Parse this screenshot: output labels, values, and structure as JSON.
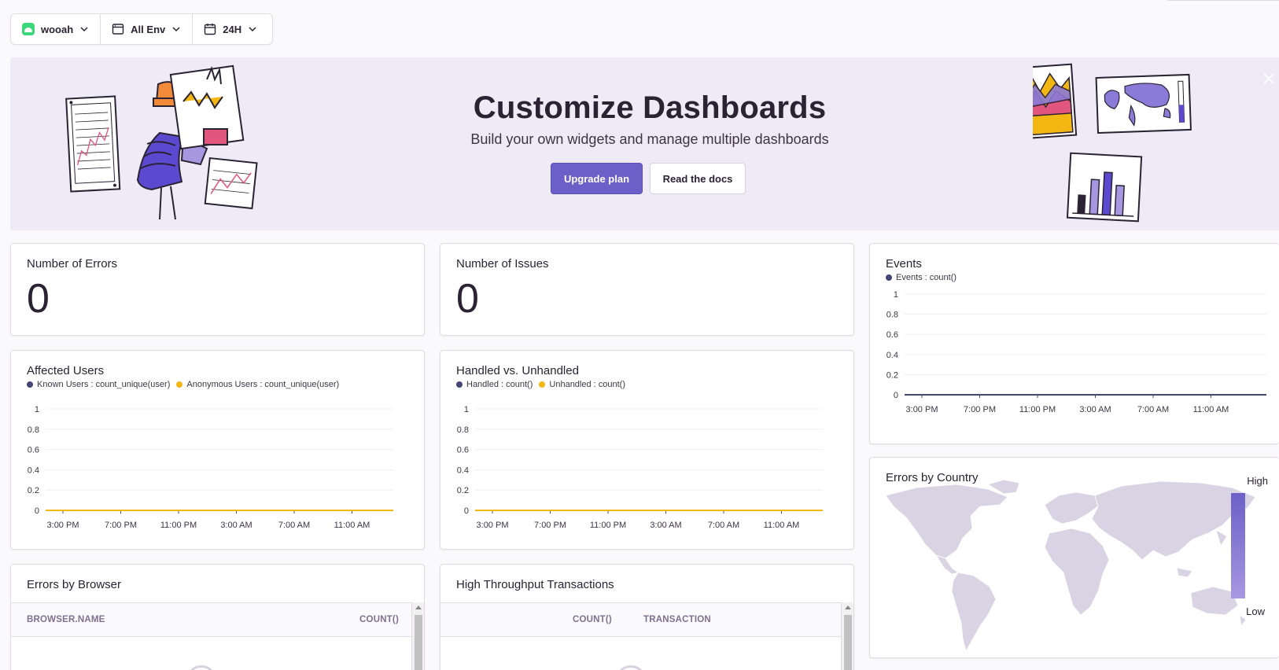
{
  "filters": {
    "project": "wooah",
    "environment": "All Env",
    "period": "24H"
  },
  "banner": {
    "title": "Customize Dashboards",
    "subtitle": "Build your own widgets and manage multiple dashboards",
    "primary_button": "Upgrade plan",
    "secondary_button": "Read the docs"
  },
  "widgets": {
    "errors": {
      "title": "Number of Errors",
      "value": "0"
    },
    "issues": {
      "title": "Number of Issues",
      "value": "0"
    },
    "events": {
      "title": "Events",
      "legend": [
        "Events : count()"
      ]
    },
    "affected_users": {
      "title": "Affected Users",
      "legend": [
        "Known Users : count_unique(user)",
        "Anonymous Users : count_unique(user)"
      ]
    },
    "handled": {
      "title": "Handled vs. Unhandled",
      "legend": [
        "Handled : count()",
        "Unhandled : count()"
      ]
    },
    "country": {
      "title": "Errors by Country",
      "high_label": "High",
      "low_label": "Low"
    },
    "browser": {
      "title": "Errors by Browser",
      "columns": [
        "BROWSER.NAME",
        "COUNT()"
      ]
    },
    "transactions": {
      "title": "High Throughput Transactions",
      "columns": [
        "COUNT()",
        "TRANSACTION"
      ]
    }
  },
  "colors": {
    "accent": "#6c5fc7",
    "series_dark": "#444674",
    "series_yellow": "#f2b712",
    "map_fill": "#d9d3e4"
  },
  "chart_data": [
    {
      "type": "line",
      "title": "Events",
      "x": [
        "3:00 PM",
        "7:00 PM",
        "11:00 PM",
        "3:00 AM",
        "7:00 AM",
        "11:00 AM"
      ],
      "series": [
        {
          "name": "Events : count()",
          "values": [
            0,
            0,
            0,
            0,
            0,
            0
          ]
        }
      ],
      "yticks": [
        "1",
        "0.8",
        "0.6",
        "0.4",
        "0.2",
        "0"
      ],
      "ylim": [
        0,
        1
      ]
    },
    {
      "type": "line",
      "title": "Affected Users",
      "x": [
        "3:00 PM",
        "7:00 PM",
        "11:00 PM",
        "3:00 AM",
        "7:00 AM",
        "11:00 AM"
      ],
      "series": [
        {
          "name": "Known Users : count_unique(user)",
          "values": [
            0,
            0,
            0,
            0,
            0,
            0
          ]
        },
        {
          "name": "Anonymous Users : count_unique(user)",
          "values": [
            0,
            0,
            0,
            0,
            0,
            0
          ]
        }
      ],
      "yticks": [
        "1",
        "0.8",
        "0.6",
        "0.4",
        "0.2",
        "0"
      ],
      "ylim": [
        0,
        1
      ]
    },
    {
      "type": "line",
      "title": "Handled vs. Unhandled",
      "x": [
        "3:00 PM",
        "7:00 PM",
        "11:00 PM",
        "3:00 AM",
        "7:00 AM",
        "11:00 AM"
      ],
      "series": [
        {
          "name": "Handled : count()",
          "values": [
            0,
            0,
            0,
            0,
            0,
            0
          ]
        },
        {
          "name": "Unhandled : count()",
          "values": [
            0,
            0,
            0,
            0,
            0,
            0
          ]
        }
      ],
      "yticks": [
        "1",
        "0.8",
        "0.6",
        "0.4",
        "0.2",
        "0"
      ],
      "ylim": [
        0,
        1
      ]
    }
  ]
}
